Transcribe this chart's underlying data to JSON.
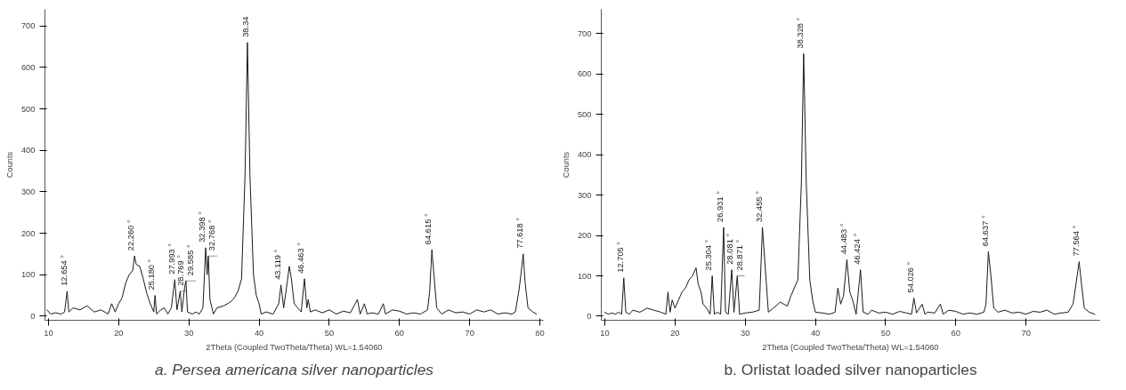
{
  "chart_data": [
    {
      "type": "line",
      "title": "a. Persea americana silver nanoparticles",
      "xlabel": "2Theta (Coupled TwoTheta/Theta) WL=1.54060",
      "ylabel": "Counts",
      "xlim": [
        9.5,
        80.5
      ],
      "ylim": [
        -10,
        740
      ],
      "xticks": [
        10,
        20,
        30,
        40,
        50,
        60,
        70,
        80
      ],
      "yticks": [
        0,
        100,
        200,
        300,
        400,
        500,
        600,
        700
      ],
      "grid": false,
      "series": [
        {
          "color": "#1a1a1a",
          "x": [
            9.8,
            10.3,
            11,
            11.8,
            12.3,
            12.654,
            12.9,
            13.5,
            14.5,
            15.5,
            16.5,
            17.5,
            18.5,
            19,
            19.5,
            20,
            20.5,
            21,
            21.5,
            22,
            22.26,
            22.5,
            23,
            23.5,
            24,
            24.5,
            25,
            25.18,
            25.4,
            26,
            26.5,
            27,
            27.5,
            27.993,
            28.3,
            28.769,
            29,
            29.4,
            29.585,
            29.8,
            30.5,
            31,
            31.5,
            32,
            32.398,
            32.6,
            32.768,
            33,
            33.5,
            34,
            35,
            36,
            36.5,
            37,
            37.5,
            38,
            38.34,
            38.7,
            39.2,
            39.6,
            40,
            40.3,
            41,
            42,
            42.8,
            43.119,
            43.5,
            44,
            44.3,
            44.6,
            45,
            45.5,
            46,
            46.463,
            46.8,
            47,
            47.3,
            48,
            49,
            50,
            51,
            52,
            53,
            54,
            54.4,
            55,
            55.4,
            56,
            57,
            57.7,
            58,
            59,
            60,
            61,
            62,
            63,
            64,
            64.3,
            64.615,
            64.9,
            65.3,
            66,
            67,
            68,
            69,
            70,
            71,
            72,
            73,
            74,
            75,
            76,
            76.5,
            77,
            77.3,
            77.618,
            77.9,
            78.3,
            79,
            79.5
          ],
          "values": [
            15,
            5,
            8,
            5,
            10,
            60,
            10,
            20,
            15,
            25,
            10,
            15,
            5,
            30,
            10,
            30,
            45,
            80,
            100,
            110,
            145,
            125,
            120,
            90,
            55,
            30,
            10,
            50,
            5,
            15,
            20,
            5,
            20,
            88,
            15,
            60,
            10,
            70,
            85,
            10,
            5,
            10,
            5,
            20,
            165,
            100,
            145,
            40,
            5,
            20,
            25,
            35,
            45,
            60,
            90,
            340,
            660,
            340,
            100,
            50,
            30,
            5,
            10,
            5,
            30,
            75,
            20,
            80,
            120,
            90,
            30,
            20,
            10,
            90,
            20,
            40,
            10,
            15,
            8,
            15,
            5,
            12,
            8,
            40,
            5,
            30,
            5,
            8,
            5,
            30,
            5,
            15,
            12,
            5,
            8,
            5,
            15,
            60,
            160,
            100,
            20,
            5,
            15,
            8,
            10,
            5,
            15,
            10,
            15,
            5,
            8,
            5,
            10,
            60,
            100,
            150,
            80,
            20,
            10,
            5
          ]
        }
      ],
      "annotations": [
        {
          "text": "12.654 °",
          "x": 12.654,
          "y": 60
        },
        {
          "text": "22.260 °",
          "x": 22.26,
          "y": 145
        },
        {
          "text": "25.180 °",
          "x": 25.18,
          "y": 50
        },
        {
          "text": "27.993 °",
          "x": 27.993,
          "y": 88
        },
        {
          "text": "28.769 °",
          "x": 28.769,
          "y": 60
        },
        {
          "text": "29.585 °",
          "x": 29.585,
          "y": 85
        },
        {
          "text": "32.398 °",
          "x": 32.398,
          "y": 165
        },
        {
          "text": "32.768 °",
          "x": 32.768,
          "y": 145
        },
        {
          "text": "38.34",
          "x": 38.34,
          "y": 660
        },
        {
          "text": "43.119 °",
          "x": 43.119,
          "y": 75
        },
        {
          "text": "46.463 °",
          "x": 46.463,
          "y": 90
        },
        {
          "text": "64.615 °",
          "x": 64.615,
          "y": 160
        },
        {
          "text": "77.618 °",
          "x": 77.618,
          "y": 150
        }
      ]
    },
    {
      "type": "line",
      "title": "b. Orlistat loaded silver nanoparticles",
      "xlabel": "2Theta (Coupled TwoTheta/Theta) WL=1.54060",
      "ylabel": "Counts",
      "xlim": [
        9.5,
        80.5
      ],
      "ylim": [
        -10,
        760
      ],
      "xticks": [
        10,
        20,
        30,
        40,
        50,
        60,
        70
      ],
      "yticks": [
        0,
        100,
        200,
        300,
        400,
        500,
        600,
        700
      ],
      "grid": false,
      "series": [
        {
          "color": "#1a1a1a",
          "x": [
            10,
            10.5,
            11,
            11.5,
            12,
            12.4,
            12.705,
            13,
            13.5,
            14,
            15,
            16,
            17,
            18,
            18.7,
            19,
            19.3,
            19.6,
            20,
            20.5,
            21,
            21.5,
            22,
            22.5,
            23,
            23.3,
            23.7,
            24,
            24.5,
            25,
            25.304,
            25.6,
            26,
            26.5,
            26.931,
            27.2,
            27.6,
            28.081,
            28.4,
            28.871,
            29.2,
            30,
            31,
            32,
            32.455,
            32.9,
            33.3,
            34,
            35,
            36,
            36.5,
            37,
            37.5,
            38,
            38.328,
            38.7,
            39.2,
            39.6,
            40,
            41,
            42,
            42.8,
            43.2,
            43.6,
            44,
            44.483,
            44.9,
            45.3,
            45.8,
            46.424,
            46.8,
            47.5,
            48,
            49,
            50,
            51,
            52,
            53,
            53.7,
            54.026,
            54.4,
            55.2,
            55.6,
            56,
            57,
            57.8,
            58.2,
            59,
            60,
            61,
            62,
            63,
            64,
            64.3,
            64.637,
            65,
            65.4,
            66,
            67,
            68,
            69,
            70,
            71,
            72,
            73,
            74,
            75,
            76,
            76.7,
            77.2,
            77.564,
            77.9,
            78.3,
            79,
            79.8
          ],
          "values": [
            10,
            5,
            8,
            5,
            10,
            5,
            95,
            10,
            5,
            15,
            10,
            20,
            15,
            10,
            5,
            60,
            10,
            40,
            20,
            40,
            60,
            70,
            90,
            100,
            120,
            80,
            60,
            30,
            20,
            5,
            100,
            5,
            10,
            5,
            220,
            10,
            5,
            115,
            10,
            100,
            5,
            8,
            10,
            15,
            220,
            110,
            10,
            20,
            35,
            25,
            50,
            70,
            90,
            330,
            650,
            330,
            90,
            40,
            10,
            8,
            5,
            10,
            70,
            30,
            50,
            140,
            60,
            40,
            5,
            115,
            10,
            5,
            15,
            8,
            10,
            5,
            12,
            8,
            5,
            45,
            8,
            30,
            5,
            10,
            8,
            30,
            5,
            15,
            12,
            5,
            8,
            5,
            10,
            30,
            160,
            100,
            20,
            10,
            15,
            8,
            10,
            5,
            12,
            10,
            15,
            5,
            8,
            10,
            30,
            90,
            135,
            80,
            20,
            10,
            5
          ]
        }
      ],
      "annotations": [
        {
          "text": "12.705 °",
          "x": 12.705,
          "y": 95
        },
        {
          "text": "25.304 °",
          "x": 25.304,
          "y": 100
        },
        {
          "text": "26.931 °",
          "x": 26.931,
          "y": 220
        },
        {
          "text": "28.081 °",
          "x": 28.081,
          "y": 115
        },
        {
          "text": "28.871 °",
          "x": 28.871,
          "y": 100
        },
        {
          "text": "32.455 °",
          "x": 32.455,
          "y": 220
        },
        {
          "text": "38.328 °",
          "x": 38.328,
          "y": 650
        },
        {
          "text": "44.483 °",
          "x": 44.483,
          "y": 140
        },
        {
          "text": "46.424 °",
          "x": 46.424,
          "y": 115
        },
        {
          "text": "54.026 °",
          "x": 54.026,
          "y": 45
        },
        {
          "text": "64.637 °",
          "x": 64.637,
          "y": 160
        },
        {
          "text": "77.564 °",
          "x": 77.564,
          "y": 135
        }
      ]
    }
  ]
}
